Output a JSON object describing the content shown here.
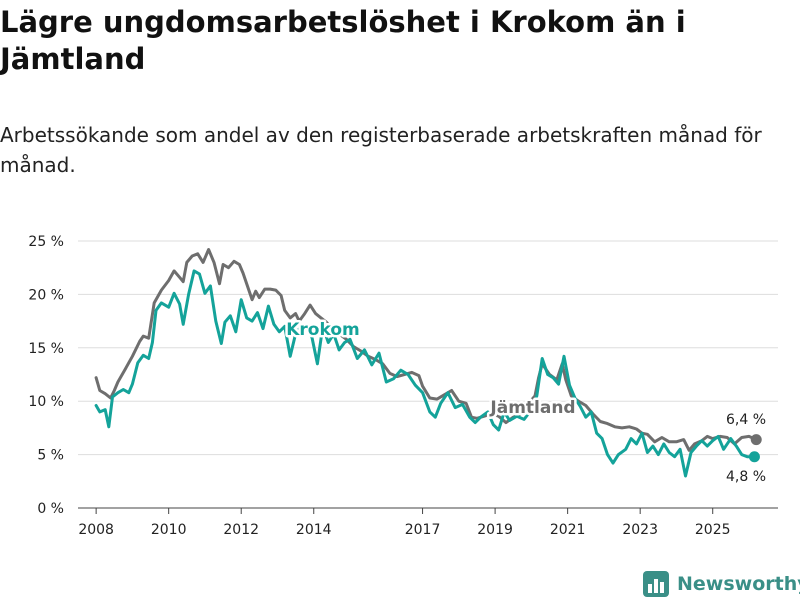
{
  "title": "Lägre ungdomsarbetslöshet i Krokom än i Jämtland",
  "subtitle": "Arbetssökande som andel av den registerbaserade arbetskraften månad för månad.",
  "brand": {
    "name": "Newsworthy",
    "color": "#3a8f87"
  },
  "chart_data": {
    "type": "line",
    "x_unit": "year",
    "xlim": [
      2007.5,
      2026.8
    ],
    "ylim": [
      0,
      25
    ],
    "y_ticks": [
      0,
      5,
      10,
      15,
      20,
      25
    ],
    "y_tick_labels": [
      "0 %",
      "5 %",
      "10 %",
      "15 %",
      "20 %",
      "25 %"
    ],
    "x_ticks": [
      2008,
      2010,
      2012,
      2014,
      2017,
      2019,
      2021,
      2023,
      2025
    ],
    "x_tick_labels": [
      "2008",
      "2010",
      "2012",
      "2014",
      "2017",
      "2019",
      "2021",
      "2023",
      "2025"
    ],
    "grid": true,
    "series": [
      {
        "name": "Jämtland",
        "color": "#6e6e6e",
        "end_label": "6,4 %",
        "points": [
          [
            2008.0,
            12.2
          ],
          [
            2008.1,
            11.0
          ],
          [
            2008.25,
            10.7
          ],
          [
            2008.4,
            10.3
          ],
          [
            2008.5,
            11.0
          ],
          [
            2008.6,
            11.8
          ],
          [
            2008.8,
            13.0
          ],
          [
            2009.0,
            14.2
          ],
          [
            2009.2,
            15.6
          ],
          [
            2009.3,
            16.1
          ],
          [
            2009.45,
            15.9
          ],
          [
            2009.6,
            19.2
          ],
          [
            2009.8,
            20.4
          ],
          [
            2010.0,
            21.3
          ],
          [
            2010.15,
            22.2
          ],
          [
            2010.3,
            21.6
          ],
          [
            2010.4,
            21.2
          ],
          [
            2010.5,
            23.0
          ],
          [
            2010.65,
            23.6
          ],
          [
            2010.8,
            23.8
          ],
          [
            2010.95,
            23.0
          ],
          [
            2011.1,
            24.2
          ],
          [
            2011.25,
            23.0
          ],
          [
            2011.4,
            21.0
          ],
          [
            2011.5,
            22.8
          ],
          [
            2011.65,
            22.5
          ],
          [
            2011.8,
            23.1
          ],
          [
            2011.95,
            22.8
          ],
          [
            2012.05,
            22.0
          ],
          [
            2012.2,
            20.5
          ],
          [
            2012.3,
            19.5
          ],
          [
            2012.4,
            20.3
          ],
          [
            2012.5,
            19.7
          ],
          [
            2012.65,
            20.5
          ],
          [
            2012.8,
            20.5
          ],
          [
            2012.95,
            20.4
          ],
          [
            2013.1,
            19.9
          ],
          [
            2013.2,
            18.5
          ],
          [
            2013.35,
            17.8
          ],
          [
            2013.5,
            18.2
          ],
          [
            2013.6,
            17.5
          ],
          [
            2013.75,
            18.2
          ],
          [
            2013.9,
            19.0
          ],
          [
            2014.05,
            18.2
          ],
          [
            2014.2,
            17.8
          ],
          [
            2014.35,
            17.4
          ],
          [
            2014.5,
            16.8
          ],
          [
            2014.7,
            16.3
          ],
          [
            2014.9,
            15.8
          ],
          [
            2015.1,
            15.1
          ],
          [
            2015.3,
            14.7
          ],
          [
            2015.5,
            14.2
          ],
          [
            2015.7,
            13.9
          ],
          [
            2015.9,
            13.5
          ],
          [
            2016.1,
            12.6
          ],
          [
            2016.3,
            12.3
          ],
          [
            2016.5,
            12.5
          ],
          [
            2016.7,
            12.7
          ],
          [
            2016.9,
            12.4
          ],
          [
            2017.0,
            11.4
          ],
          [
            2017.2,
            10.3
          ],
          [
            2017.4,
            10.2
          ],
          [
            2017.6,
            10.6
          ],
          [
            2017.8,
            11.0
          ],
          [
            2018.0,
            10.0
          ],
          [
            2018.2,
            9.8
          ],
          [
            2018.35,
            8.5
          ],
          [
            2018.5,
            8.4
          ],
          [
            2018.7,
            8.6
          ],
          [
            2018.9,
            8.8
          ],
          [
            2019.1,
            8.6
          ],
          [
            2019.3,
            8.0
          ],
          [
            2019.5,
            8.5
          ],
          [
            2019.7,
            8.8
          ],
          [
            2019.9,
            9.7
          ],
          [
            2020.1,
            10.5
          ],
          [
            2020.2,
            12.2
          ],
          [
            2020.3,
            13.5
          ],
          [
            2020.5,
            12.5
          ],
          [
            2020.7,
            12.0
          ],
          [
            2020.85,
            13.5
          ],
          [
            2020.95,
            12.0
          ],
          [
            2021.1,
            10.5
          ],
          [
            2021.3,
            10.0
          ],
          [
            2021.5,
            9.6
          ],
          [
            2021.7,
            8.8
          ],
          [
            2021.9,
            8.1
          ],
          [
            2022.1,
            7.9
          ],
          [
            2022.3,
            7.6
          ],
          [
            2022.5,
            7.5
          ],
          [
            2022.7,
            7.6
          ],
          [
            2022.9,
            7.4
          ],
          [
            2023.05,
            7.0
          ],
          [
            2023.2,
            6.9
          ],
          [
            2023.4,
            6.2
          ],
          [
            2023.6,
            6.6
          ],
          [
            2023.8,
            6.2
          ],
          [
            2024.0,
            6.2
          ],
          [
            2024.2,
            6.4
          ],
          [
            2024.35,
            5.4
          ],
          [
            2024.5,
            6.0
          ],
          [
            2024.7,
            6.3
          ],
          [
            2024.85,
            6.7
          ],
          [
            2025.0,
            6.5
          ],
          [
            2025.2,
            6.7
          ],
          [
            2025.4,
            6.6
          ],
          [
            2025.6,
            6.0
          ],
          [
            2025.8,
            6.6
          ],
          [
            2026.0,
            6.7
          ],
          [
            2026.2,
            6.4
          ]
        ]
      },
      {
        "name": "Krokom",
        "color": "#14a39a",
        "end_label": "4,8 %",
        "points": [
          [
            2008.0,
            9.6
          ],
          [
            2008.1,
            9.0
          ],
          [
            2008.25,
            9.2
          ],
          [
            2008.35,
            7.6
          ],
          [
            2008.45,
            10.4
          ],
          [
            2008.6,
            10.8
          ],
          [
            2008.75,
            11.1
          ],
          [
            2008.9,
            10.8
          ],
          [
            2009.0,
            11.6
          ],
          [
            2009.15,
            13.6
          ],
          [
            2009.3,
            14.3
          ],
          [
            2009.45,
            14.0
          ],
          [
            2009.55,
            15.5
          ],
          [
            2009.65,
            18.5
          ],
          [
            2009.8,
            19.2
          ],
          [
            2010.0,
            18.8
          ],
          [
            2010.15,
            20.1
          ],
          [
            2010.3,
            19.1
          ],
          [
            2010.4,
            17.2
          ],
          [
            2010.55,
            20.0
          ],
          [
            2010.7,
            22.2
          ],
          [
            2010.85,
            21.9
          ],
          [
            2011.0,
            20.1
          ],
          [
            2011.15,
            20.8
          ],
          [
            2011.3,
            17.5
          ],
          [
            2011.45,
            15.4
          ],
          [
            2011.55,
            17.4
          ],
          [
            2011.7,
            18.0
          ],
          [
            2011.85,
            16.5
          ],
          [
            2012.0,
            19.5
          ],
          [
            2012.15,
            17.8
          ],
          [
            2012.3,
            17.5
          ],
          [
            2012.45,
            18.3
          ],
          [
            2012.6,
            16.8
          ],
          [
            2012.75,
            18.9
          ],
          [
            2012.9,
            17.2
          ],
          [
            2013.05,
            16.5
          ],
          [
            2013.2,
            17.0
          ],
          [
            2013.35,
            14.2
          ],
          [
            2013.5,
            16.3
          ],
          [
            2013.65,
            17.0
          ],
          [
            2013.8,
            16.8
          ],
          [
            2013.95,
            16.0
          ],
          [
            2014.1,
            13.5
          ],
          [
            2014.25,
            17.0
          ],
          [
            2014.4,
            15.5
          ],
          [
            2014.55,
            16.3
          ],
          [
            2014.7,
            14.8
          ],
          [
            2014.85,
            15.5
          ],
          [
            2015.0,
            15.8
          ],
          [
            2015.2,
            14.0
          ],
          [
            2015.4,
            14.8
          ],
          [
            2015.6,
            13.4
          ],
          [
            2015.8,
            14.5
          ],
          [
            2016.0,
            11.8
          ],
          [
            2016.2,
            12.1
          ],
          [
            2016.4,
            12.9
          ],
          [
            2016.6,
            12.5
          ],
          [
            2016.8,
            11.5
          ],
          [
            2017.0,
            10.8
          ],
          [
            2017.2,
            9.0
          ],
          [
            2017.35,
            8.5
          ],
          [
            2017.5,
            9.8
          ],
          [
            2017.7,
            10.8
          ],
          [
            2017.9,
            9.4
          ],
          [
            2018.1,
            9.7
          ],
          [
            2018.3,
            8.5
          ],
          [
            2018.45,
            8.0
          ],
          [
            2018.6,
            8.5
          ],
          [
            2018.8,
            9.0
          ],
          [
            2018.95,
            7.8
          ],
          [
            2019.1,
            7.3
          ],
          [
            2019.25,
            9.0
          ],
          [
            2019.4,
            8.2
          ],
          [
            2019.6,
            8.6
          ],
          [
            2019.8,
            8.3
          ],
          [
            2020.0,
            9.2
          ],
          [
            2020.15,
            10.5
          ],
          [
            2020.3,
            14.0
          ],
          [
            2020.45,
            12.5
          ],
          [
            2020.6,
            12.2
          ],
          [
            2020.75,
            11.6
          ],
          [
            2020.9,
            14.2
          ],
          [
            2021.05,
            11.5
          ],
          [
            2021.2,
            10.3
          ],
          [
            2021.35,
            9.5
          ],
          [
            2021.5,
            8.5
          ],
          [
            2021.65,
            9.0
          ],
          [
            2021.8,
            7.0
          ],
          [
            2021.95,
            6.5
          ],
          [
            2022.1,
            5.0
          ],
          [
            2022.25,
            4.2
          ],
          [
            2022.4,
            5.0
          ],
          [
            2022.6,
            5.5
          ],
          [
            2022.75,
            6.5
          ],
          [
            2022.9,
            6.0
          ],
          [
            2023.05,
            7.0
          ],
          [
            2023.2,
            5.2
          ],
          [
            2023.35,
            5.8
          ],
          [
            2023.5,
            5.0
          ],
          [
            2023.65,
            6.0
          ],
          [
            2023.8,
            5.2
          ],
          [
            2023.95,
            4.8
          ],
          [
            2024.1,
            5.5
          ],
          [
            2024.25,
            3.0
          ],
          [
            2024.4,
            5.2
          ],
          [
            2024.55,
            5.8
          ],
          [
            2024.7,
            6.3
          ],
          [
            2024.85,
            5.8
          ],
          [
            2025.0,
            6.3
          ],
          [
            2025.15,
            6.7
          ],
          [
            2025.3,
            5.5
          ],
          [
            2025.5,
            6.5
          ],
          [
            2025.65,
            5.8
          ],
          [
            2025.8,
            5.0
          ],
          [
            2025.95,
            4.8
          ],
          [
            2026.15,
            4.8
          ]
        ]
      }
    ],
    "inline_labels": {
      "krokom": "Krokom",
      "jamtland": "Jämtland"
    }
  }
}
